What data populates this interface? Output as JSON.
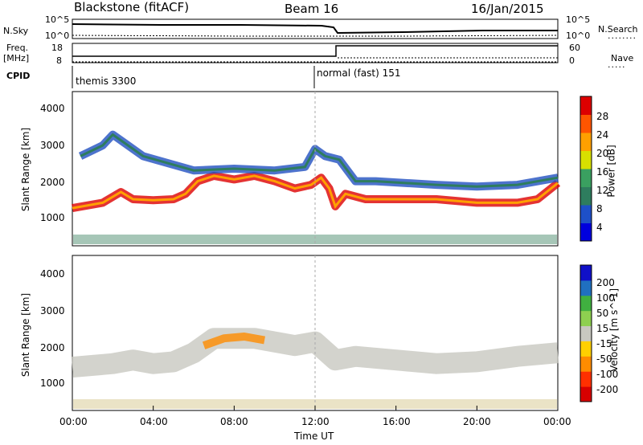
{
  "header": {
    "station": "Blackstone (fitACF)",
    "beam": "Beam 16",
    "date": "16/Jan/2015"
  },
  "noise_panel": {
    "left_label": "N.Sky",
    "left_ticks": [
      "10^5",
      "10^0"
    ],
    "right_ticks": [
      "10^5",
      "10^0"
    ],
    "right_label": "N.Search"
  },
  "freq_panel": {
    "left_label": "Freq.",
    "left_unit": "[MHz]",
    "left_ticks": [
      "18",
      "8"
    ],
    "right_ticks": [
      "60",
      "0"
    ],
    "right_label": "Nave"
  },
  "cpid_panel": {
    "label": "CPID",
    "modes": [
      {
        "name": "themis 3300",
        "start_hour": 0
      },
      {
        "name": "normal (fast) 151",
        "start_hour": 12
      }
    ]
  },
  "chart_data": [
    {
      "type": "heatmap",
      "panel": "power",
      "ylabel": "Slant Range [km]",
      "ylim": [
        200,
        4500
      ],
      "xlim": [
        0,
        24
      ],
      "yticks": [
        "4000",
        "3000",
        "2000",
        "1000"
      ],
      "colorbar": {
        "label": "Power [dB]",
        "ticks": [
          "28",
          "24",
          "20",
          "16",
          "12",
          "8",
          "4"
        ],
        "colors": [
          "#0000dd",
          "#1e50c8",
          "#2e7d5e",
          "#3aa060",
          "#d8e000",
          "#ffa000",
          "#ff5500",
          "#dd0000"
        ]
      },
      "bands": [
        {
          "name": "lower",
          "points": [
            [
              0,
              1250
            ],
            [
              1.5,
              1400
            ],
            [
              2.4,
              1700
            ],
            [
              3,
              1500
            ],
            [
              4,
              1470
            ],
            [
              5,
              1500
            ],
            [
              5.6,
              1650
            ],
            [
              6.2,
              2000
            ],
            [
              7,
              2150
            ],
            [
              8,
              2050
            ],
            [
              9,
              2150
            ],
            [
              10,
              2000
            ],
            [
              11,
              1800
            ],
            [
              11.8,
              1900
            ],
            [
              12.3,
              2100
            ],
            [
              12.7,
              1800
            ],
            [
              13,
              1300
            ],
            [
              13.5,
              1650
            ],
            [
              14.5,
              1500
            ],
            [
              16,
              1500
            ],
            [
              18,
              1500
            ],
            [
              20,
              1400
            ],
            [
              22,
              1400
            ],
            [
              23,
              1500
            ],
            [
              24,
              1950
            ]
          ],
          "color": "#dd0000"
        },
        {
          "name": "upper",
          "points": [
            [
              0.4,
              2700
            ],
            [
              1.5,
              3000
            ],
            [
              2,
              3300
            ],
            [
              2.5,
              3100
            ],
            [
              3.5,
              2700
            ],
            [
              6,
              2300
            ],
            [
              8,
              2350
            ],
            [
              10,
              2300
            ],
            [
              11.5,
              2400
            ],
            [
              12,
              2900
            ],
            [
              12.5,
              2700
            ],
            [
              13.2,
              2600
            ],
            [
              14,
              2000
            ],
            [
              15,
              2000
            ],
            [
              18,
              1900
            ],
            [
              20,
              1850
            ],
            [
              22,
              1900
            ],
            [
              24,
              2100
            ]
          ],
          "color": "#2050c0"
        }
      ]
    },
    {
      "type": "heatmap",
      "panel": "velocity",
      "ylabel": "Slant Range [km]",
      "ylim": [
        200,
        4500
      ],
      "xlim": [
        0,
        24
      ],
      "yticks": [
        "4000",
        "3000",
        "2000",
        "1000"
      ],
      "colorbar": {
        "label": "Velocity [m s^-1]",
        "ticks": [
          "200",
          "100",
          "50",
          "15",
          "-15",
          "-50",
          "-100",
          "-200"
        ],
        "colors": [
          "#1010c8",
          "#2070c0",
          "#40b040",
          "#8ed050",
          "#c8c8c0",
          "#ffd000",
          "#ff8c00",
          "#ff3000",
          "#d80000"
        ]
      },
      "bands": [
        {
          "name": "ground",
          "points": [
            [
              0,
              1400
            ],
            [
              2,
              1500
            ],
            [
              3,
              1600
            ],
            [
              4,
              1500
            ],
            [
              5,
              1550
            ],
            [
              6,
              1800
            ],
            [
              7,
              2200
            ],
            [
              8,
              2200
            ],
            [
              9,
              2200
            ],
            [
              10,
              2100
            ],
            [
              11,
              2000
            ],
            [
              12,
              2100
            ],
            [
              13,
              1600
            ],
            [
              14,
              1700
            ],
            [
              16,
              1600
            ],
            [
              18,
              1500
            ],
            [
              20,
              1550
            ],
            [
              22,
              1700
            ],
            [
              24,
              1800
            ]
          ],
          "color": "#c8c8c0"
        },
        {
          "name": "flow",
          "points": [
            [
              6.5,
              2000
            ],
            [
              7.5,
              2200
            ],
            [
              8.5,
              2250
            ],
            [
              9.5,
              2150
            ]
          ],
          "color": "#ff8c00"
        }
      ]
    }
  ],
  "time_axis": {
    "label": "Time UT",
    "ticks": [
      "00:00",
      "04:00",
      "08:00",
      "12:00",
      "16:00",
      "20:00",
      "00:00"
    ],
    "tick_hours": [
      0,
      4,
      8,
      12,
      16,
      20,
      24
    ]
  }
}
